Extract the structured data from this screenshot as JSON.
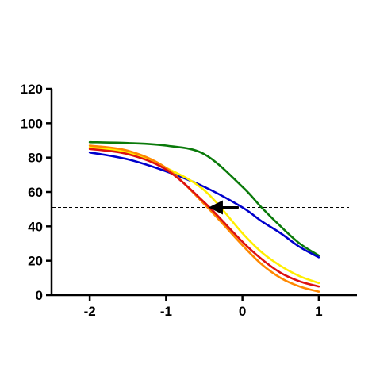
{
  "chart_data": {
    "type": "line",
    "title": "",
    "xlabel": "",
    "ylabel": "",
    "xlim": [
      -2.5,
      1.5
    ],
    "ylim": [
      0,
      120
    ],
    "x_ticks": [
      -2,
      -1,
      0,
      1
    ],
    "y_ticks": [
      0,
      20,
      40,
      60,
      80,
      100,
      120
    ],
    "grid": false,
    "legend": "none",
    "reference_line": {
      "y": 51,
      "style": "dashed",
      "color": "#000000"
    },
    "arrow": {
      "from": {
        "x": -0.05,
        "y": 51
      },
      "to": {
        "x": -0.35,
        "y": 51
      },
      "color": "#000000"
    },
    "series": [
      {
        "color": "#0a7a0a",
        "x": [
          -2,
          -1.5,
          -1,
          -0.5,
          0,
          0.25,
          0.5,
          0.75,
          1
        ],
        "y": [
          89,
          88.5,
          87,
          82,
          63,
          51,
          40,
          30,
          23
        ]
      },
      {
        "color": "#0000cc",
        "x": [
          -2,
          -1.5,
          -1,
          -0.5,
          0,
          0.25,
          0.5,
          0.75,
          1
        ],
        "y": [
          83,
          79,
          72,
          63,
          51,
          43,
          36,
          28,
          22
        ]
      },
      {
        "color": "#ffee00",
        "x": [
          -2,
          -1.5,
          -1,
          -0.5,
          0,
          0.25,
          0.5,
          0.75,
          1
        ],
        "y": [
          86,
          83,
          74,
          61,
          36,
          25,
          17,
          11,
          7
        ]
      },
      {
        "color": "#ff8800",
        "x": [
          -2,
          -1.5,
          -1,
          -0.5,
          0,
          0.25,
          0.5,
          0.75,
          1
        ],
        "y": [
          87,
          84,
          74,
          53,
          29,
          18,
          10,
          5,
          2
        ]
      },
      {
        "color": "#dd1111",
        "x": [
          -2,
          -1.5,
          -1,
          -0.5,
          0,
          0.25,
          0.5,
          0.75,
          1
        ],
        "y": [
          85,
          82,
          73,
          54,
          31,
          21,
          13,
          8,
          5
        ]
      }
    ]
  }
}
